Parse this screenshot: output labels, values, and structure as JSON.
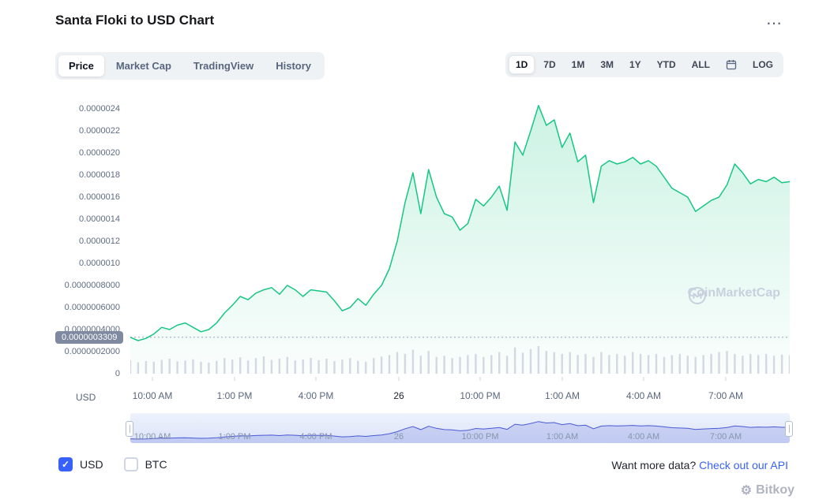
{
  "header": {
    "title": "Santa Floki to USD Chart",
    "more_label": "⋯"
  },
  "tabs": {
    "items": [
      {
        "label": "Price",
        "active": true
      },
      {
        "label": "Market Cap",
        "active": false
      },
      {
        "label": "TradingView",
        "active": false
      },
      {
        "label": "History",
        "active": false
      }
    ]
  },
  "range_controls": {
    "items": [
      {
        "label": "1D",
        "active": true
      },
      {
        "label": "7D",
        "active": false
      },
      {
        "label": "1M",
        "active": false
      },
      {
        "label": "3M",
        "active": false
      },
      {
        "label": "1Y",
        "active": false
      },
      {
        "label": "YTD",
        "active": false
      },
      {
        "label": "ALL",
        "active": false
      },
      {
        "icon": "calendar"
      },
      {
        "label": "LOG",
        "active": false
      }
    ]
  },
  "chart_data": {
    "type": "area",
    "title": "Santa Floki to USD Chart",
    "xlabel": "",
    "ylabel": "USD",
    "axis_unit": "USD",
    "grid": false,
    "legend": "none",
    "y_axis": {
      "min": 0,
      "max": 2.4929e-06,
      "ticks": [
        {
          "label": "0.0000024",
          "value": 2.4e-06
        },
        {
          "label": "0.0000022",
          "value": 2.2e-06
        },
        {
          "label": "0.0000020",
          "value": 2e-06
        },
        {
          "label": "0.0000018",
          "value": 1.8e-06
        },
        {
          "label": "0.0000016",
          "value": 1.6e-06
        },
        {
          "label": "0.0000014",
          "value": 1.4e-06
        },
        {
          "label": "0.0000012",
          "value": 1.2e-06
        },
        {
          "label": "0.0000010",
          "value": 1e-06
        },
        {
          "label": "0.0000008000",
          "value": 8e-07
        },
        {
          "label": "0.0000006000",
          "value": 6e-07
        },
        {
          "label": "0.0000004000",
          "value": 4e-07
        },
        {
          "label": "0.0000002000",
          "value": 2e-07
        },
        {
          "label": "0",
          "value": 0
        }
      ]
    },
    "x_ticks": [
      {
        "label": "10:00 AM",
        "f": 0.034,
        "strong": false
      },
      {
        "label": "1:00 PM",
        "f": 0.158,
        "strong": false
      },
      {
        "label": "4:00 PM",
        "f": 0.281,
        "strong": false
      },
      {
        "label": "26",
        "f": 0.407,
        "strong": true
      },
      {
        "label": "10:00 PM",
        "f": 0.53,
        "strong": false
      },
      {
        "label": "1:00 AM",
        "f": 0.655,
        "strong": false
      },
      {
        "label": "4:00 AM",
        "f": 0.779,
        "strong": false
      },
      {
        "label": "7:00 AM",
        "f": 0.903,
        "strong": false
      }
    ],
    "current_price": {
      "label": "0.0000003309",
      "value": 3.309e-07
    },
    "series": [
      {
        "name": "price",
        "color": "#16c784",
        "values": [
          3.3e-07,
          3e-07,
          3.2e-07,
          3.6e-07,
          4.2e-07,
          4e-07,
          4.4e-07,
          4.6e-07,
          4.2e-07,
          3.8e-07,
          4e-07,
          4.6e-07,
          5.5e-07,
          6.2e-07,
          7e-07,
          6.7e-07,
          7.3e-07,
          7.6e-07,
          7.8e-07,
          7.2e-07,
          8e-07,
          7.6e-07,
          7e-07,
          7.6e-07,
          7.5e-07,
          7.4e-07,
          6.6e-07,
          5.7e-07,
          6e-07,
          6.8e-07,
          6.2e-07,
          7.2e-07,
          8e-07,
          9.5e-07,
          1.2e-06,
          1.55e-06,
          1.82e-06,
          1.45e-06,
          1.85e-06,
          1.6e-06,
          1.45e-06,
          1.42e-06,
          1.3e-06,
          1.36e-06,
          1.58e-06,
          1.52e-06,
          1.6e-06,
          1.7e-06,
          1.48e-06,
          2.1e-06,
          1.98e-06,
          2.2e-06,
          2.43e-06,
          2.25e-06,
          2.3e-06,
          2.05e-06,
          2.18e-06,
          1.92e-06,
          1.98e-06,
          1.55e-06,
          1.88e-06,
          1.93e-06,
          1.9e-06,
          1.92e-06,
          1.96e-06,
          1.9e-06,
          1.93e-06,
          1.88e-06,
          1.78e-06,
          1.68e-06,
          1.64e-06,
          1.6e-06,
          1.47e-06,
          1.52e-06,
          1.57e-06,
          1.6e-06,
          1.71e-06,
          1.9e-06,
          1.82e-06,
          1.72e-06,
          1.76e-06,
          1.74e-06,
          1.78e-06,
          1.73e-06,
          1.74e-06
        ]
      }
    ],
    "volume": {
      "color": "#d3d8e2",
      "values": [
        0.45,
        0.38,
        0.42,
        0.4,
        0.46,
        0.5,
        0.41,
        0.44,
        0.48,
        0.4,
        0.37,
        0.43,
        0.52,
        0.47,
        0.55,
        0.44,
        0.52,
        0.58,
        0.46,
        0.5,
        0.56,
        0.44,
        0.48,
        0.53,
        0.45,
        0.5,
        0.42,
        0.47,
        0.52,
        0.43,
        0.4,
        0.52,
        0.57,
        0.62,
        0.72,
        0.66,
        0.8,
        0.6,
        0.76,
        0.56,
        0.6,
        0.52,
        0.56,
        0.62,
        0.66,
        0.56,
        0.62,
        0.72,
        0.6,
        0.88,
        0.7,
        0.82,
        0.92,
        0.76,
        0.72,
        0.66,
        0.72,
        0.62,
        0.66,
        0.56,
        0.72,
        0.62,
        0.66,
        0.6,
        0.72,
        0.66,
        0.62,
        0.66,
        0.56,
        0.62,
        0.66,
        0.6,
        0.56,
        0.62,
        0.66,
        0.72,
        0.76,
        0.66,
        0.6,
        0.66,
        0.62,
        0.66,
        0.6,
        0.64,
        0.62
      ]
    },
    "brush": {
      "line_color": "#4a5ad4",
      "fill_color": "rgba(74,90,212,0.18)"
    },
    "watermark": "CoinMarketCap"
  },
  "footer": {
    "currencies": [
      {
        "label": "USD",
        "checked": true
      },
      {
        "label": "BTC",
        "checked": false
      }
    ],
    "more_text": "Want more data?",
    "api_link": "Check out our API"
  },
  "site_watermark": {
    "icon": "gear-icon",
    "text": "Bitkoy"
  }
}
